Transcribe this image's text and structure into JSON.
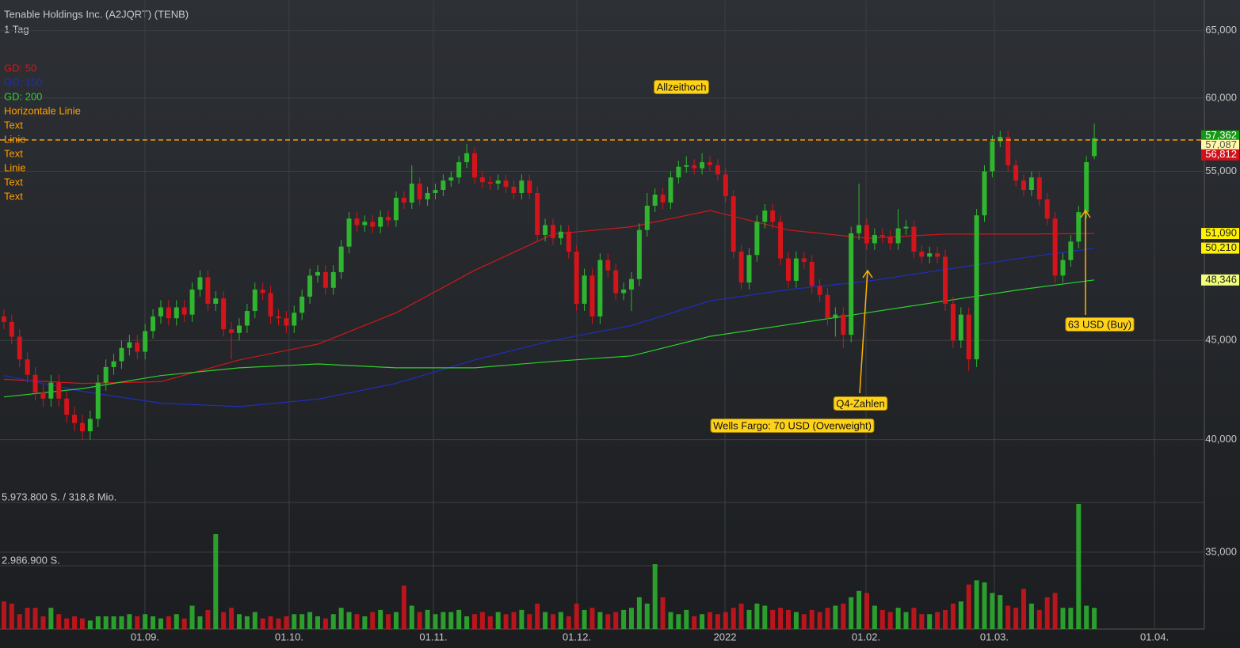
{
  "chart_data": {
    "type": "candlestick",
    "title": "Tenable Holdings Inc. (A2JQRT) (TENB)",
    "subtitle": "1 Tag",
    "log_scale": true,
    "grid": true,
    "ylim": [
      31.95,
      67.4
    ],
    "yticks": [
      {
        "value": 35,
        "label": "35,000"
      },
      {
        "value": 40,
        "label": "40,000"
      },
      {
        "value": 45,
        "label": "45,000"
      },
      {
        "value": 55,
        "label": "55,000"
      },
      {
        "value": 60,
        "label": "60,000"
      },
      {
        "value": 65,
        "label": "65,000"
      }
    ],
    "xlim": [
      -0.5,
      153.03
    ],
    "xticks": [
      {
        "value": 17.98,
        "label": "01.09."
      },
      {
        "value": 36.36,
        "label": "01.10."
      },
      {
        "value": 54.75,
        "label": "01.11."
      },
      {
        "value": 73.03,
        "label": "01.12."
      },
      {
        "value": 91.92,
        "label": "2022"
      },
      {
        "value": 109.9,
        "label": "01.02."
      },
      {
        "value": 126.26,
        "label": "01.03."
      },
      {
        "value": 146.67,
        "label": "01.04."
      }
    ],
    "up_color": "#2fb52f",
    "down_color": "#d3151b",
    "ohlc": [
      [
        46.3,
        46.7,
        45.6,
        46.0
      ],
      [
        46.0,
        46.4,
        44.8,
        45.2
      ],
      [
        45.2,
        45.6,
        43.6,
        44.0
      ],
      [
        44.0,
        44.4,
        42.8,
        43.2
      ],
      [
        43.2,
        43.6,
        41.9,
        42.3
      ],
      [
        42.3,
        42.7,
        41.6,
        42.0
      ],
      [
        42.0,
        43.2,
        41.6,
        42.8
      ],
      [
        42.8,
        43.2,
        41.6,
        42.0
      ],
      [
        42.0,
        42.4,
        40.8,
        41.2
      ],
      [
        41.2,
        41.6,
        40.4,
        40.8
      ],
      [
        40.8,
        41.2,
        40.0,
        40.4
      ],
      [
        40.4,
        41.4,
        40.0,
        41.0
      ],
      [
        41.0,
        43.2,
        40.6,
        42.8
      ],
      [
        42.8,
        44.0,
        42.4,
        43.6
      ],
      [
        43.6,
        44.3,
        43.2,
        43.9
      ],
      [
        43.9,
        45.0,
        43.5,
        44.6
      ],
      [
        44.6,
        45.3,
        44.2,
        44.9
      ],
      [
        44.9,
        45.3,
        44.0,
        44.4
      ],
      [
        44.4,
        45.9,
        44.0,
        45.5
      ],
      [
        45.5,
        46.7,
        45.1,
        46.3
      ],
      [
        46.3,
        47.2,
        45.9,
        46.8
      ],
      [
        46.8,
        47.2,
        45.8,
        46.2
      ],
      [
        46.2,
        47.2,
        45.8,
        46.8
      ],
      [
        46.8,
        47.2,
        46.0,
        46.4
      ],
      [
        46.4,
        48.2,
        46.0,
        47.8
      ],
      [
        47.8,
        48.9,
        47.4,
        48.5
      ],
      [
        48.5,
        48.9,
        46.6,
        47.0
      ],
      [
        47.0,
        47.7,
        46.6,
        47.3
      ],
      [
        47.3,
        47.7,
        45.2,
        45.6
      ],
      [
        45.6,
        46.0,
        44.0,
        45.4
      ],
      [
        45.4,
        46.2,
        45.0,
        45.8
      ],
      [
        45.8,
        47.0,
        45.4,
        46.6
      ],
      [
        46.6,
        48.2,
        46.2,
        47.8
      ],
      [
        47.8,
        48.2,
        47.2,
        47.6
      ],
      [
        47.6,
        48.0,
        45.9,
        46.3
      ],
      [
        46.3,
        46.7,
        45.8,
        46.2
      ],
      [
        46.2,
        46.6,
        45.4,
        45.8
      ],
      [
        45.8,
        46.9,
        45.4,
        46.5
      ],
      [
        46.5,
        47.8,
        46.1,
        47.4
      ],
      [
        47.4,
        49.0,
        47.0,
        48.6
      ],
      [
        48.6,
        49.2,
        48.2,
        48.8
      ],
      [
        48.8,
        49.2,
        47.5,
        47.9
      ],
      [
        47.9,
        49.2,
        47.5,
        48.8
      ],
      [
        48.8,
        50.7,
        48.4,
        50.3
      ],
      [
        50.3,
        52.4,
        49.9,
        52.0
      ],
      [
        52.0,
        52.4,
        51.2,
        51.6
      ],
      [
        51.6,
        52.2,
        51.2,
        51.8
      ],
      [
        51.8,
        52.2,
        51.1,
        51.5
      ],
      [
        51.5,
        52.5,
        51.1,
        52.1
      ],
      [
        52.1,
        52.5,
        51.5,
        51.9
      ],
      [
        51.9,
        53.7,
        51.5,
        53.3
      ],
      [
        53.3,
        53.7,
        52.6,
        53.0
      ],
      [
        53.0,
        55.4,
        52.6,
        54.2
      ],
      [
        54.2,
        54.6,
        52.8,
        53.2
      ],
      [
        53.2,
        54.0,
        52.8,
        53.6
      ],
      [
        53.6,
        54.2,
        53.2,
        53.8
      ],
      [
        53.8,
        54.8,
        53.4,
        54.4
      ],
      [
        54.4,
        55.0,
        54.0,
        54.6
      ],
      [
        54.6,
        56.0,
        54.2,
        55.6
      ],
      [
        55.6,
        56.8,
        55.2,
        56.2
      ],
      [
        56.2,
        56.6,
        54.2,
        54.6
      ],
      [
        54.6,
        55.0,
        53.9,
        54.3
      ],
      [
        54.3,
        54.7,
        53.8,
        54.2
      ],
      [
        54.2,
        54.8,
        53.8,
        54.4
      ],
      [
        54.4,
        54.8,
        53.6,
        54.0
      ],
      [
        54.0,
        54.4,
        53.2,
        53.6
      ],
      [
        53.6,
        54.8,
        53.2,
        54.4
      ],
      [
        54.4,
        54.8,
        53.2,
        53.6
      ],
      [
        53.6,
        54.0,
        50.6,
        51.0
      ],
      [
        51.0,
        52.0,
        50.6,
        51.6
      ],
      [
        51.6,
        52.0,
        50.4,
        50.8
      ],
      [
        50.8,
        51.6,
        50.4,
        51.2
      ],
      [
        51.2,
        51.6,
        49.6,
        50.0
      ],
      [
        50.0,
        50.4,
        46.6,
        47.0
      ],
      [
        47.0,
        49.0,
        46.6,
        48.6
      ],
      [
        48.6,
        49.0,
        45.9,
        46.3
      ],
      [
        46.3,
        49.9,
        45.9,
        49.5
      ],
      [
        49.5,
        49.9,
        48.5,
        48.9
      ],
      [
        48.9,
        49.3,
        47.2,
        47.6
      ],
      [
        47.6,
        48.2,
        47.2,
        47.8
      ],
      [
        47.8,
        48.8,
        46.6,
        48.4
      ],
      [
        48.4,
        51.7,
        48.0,
        51.3
      ],
      [
        51.3,
        53.6,
        50.9,
        52.8
      ],
      [
        52.8,
        53.9,
        52.4,
        53.5
      ],
      [
        53.5,
        53.9,
        52.6,
        53.0
      ],
      [
        53.0,
        55.0,
        52.6,
        54.6
      ],
      [
        54.6,
        55.7,
        54.2,
        55.3
      ],
      [
        55.3,
        56.0,
        54.9,
        55.4
      ],
      [
        55.4,
        55.8,
        54.8,
        55.2
      ],
      [
        55.2,
        56.2,
        54.8,
        55.6
      ],
      [
        55.6,
        56.0,
        55.0,
        55.4
      ],
      [
        55.4,
        55.8,
        54.4,
        54.8
      ],
      [
        54.8,
        55.2,
        53.0,
        53.4
      ],
      [
        53.4,
        53.8,
        49.6,
        50.0
      ],
      [
        50.0,
        50.4,
        47.8,
        48.2
      ],
      [
        48.2,
        50.2,
        47.8,
        49.8
      ],
      [
        49.8,
        52.2,
        49.4,
        51.8
      ],
      [
        51.8,
        52.9,
        51.4,
        52.5
      ],
      [
        52.5,
        52.9,
        51.4,
        51.8
      ],
      [
        51.8,
        52.2,
        49.2,
        49.6
      ],
      [
        49.6,
        50.0,
        47.9,
        48.3
      ],
      [
        48.3,
        50.0,
        47.9,
        49.6
      ],
      [
        49.6,
        50.0,
        49.0,
        49.4
      ],
      [
        49.4,
        49.8,
        47.6,
        48.0
      ],
      [
        48.0,
        48.4,
        47.1,
        47.5
      ],
      [
        47.5,
        47.9,
        45.8,
        46.2
      ],
      [
        46.2,
        46.8,
        45.2,
        46.4
      ],
      [
        46.4,
        46.8,
        44.6,
        45.3
      ],
      [
        45.3,
        51.5,
        44.9,
        51.1
      ],
      [
        51.1,
        54.2,
        50.7,
        51.6
      ],
      [
        51.6,
        52.0,
        50.1,
        50.5
      ],
      [
        50.5,
        51.4,
        50.1,
        51.0
      ],
      [
        51.0,
        51.4,
        50.5,
        50.9
      ],
      [
        50.9,
        51.3,
        50.1,
        50.5
      ],
      [
        50.5,
        52.6,
        50.1,
        51.4
      ],
      [
        51.4,
        51.9,
        51.0,
        51.5
      ],
      [
        51.5,
        51.9,
        49.6,
        50.0
      ],
      [
        50.0,
        50.4,
        49.3,
        49.7
      ],
      [
        49.7,
        50.3,
        49.3,
        49.9
      ],
      [
        49.9,
        50.3,
        49.3,
        49.7
      ],
      [
        49.7,
        50.1,
        46.6,
        47.0
      ],
      [
        47.0,
        47.4,
        44.6,
        45.0
      ],
      [
        45.0,
        46.8,
        44.6,
        46.4
      ],
      [
        46.4,
        46.8,
        43.4,
        44.0
      ],
      [
        44.0,
        52.6,
        43.6,
        52.2
      ],
      [
        52.2,
        55.4,
        51.8,
        55.0
      ],
      [
        55.0,
        57.4,
        54.6,
        57.0
      ],
      [
        57.0,
        57.7,
        56.6,
        57.3
      ],
      [
        57.3,
        57.7,
        55.0,
        55.4
      ],
      [
        55.4,
        55.8,
        54.0,
        54.4
      ],
      [
        54.4,
        54.8,
        53.4,
        53.8
      ],
      [
        53.8,
        55.0,
        53.4,
        54.6
      ],
      [
        54.6,
        55.0,
        52.8,
        53.2
      ],
      [
        53.2,
        53.6,
        51.6,
        52.0
      ],
      [
        52.0,
        52.4,
        48.2,
        48.6
      ],
      [
        48.6,
        49.9,
        48.2,
        49.5
      ],
      [
        49.5,
        51.0,
        49.1,
        50.6
      ],
      [
        50.6,
        52.8,
        50.2,
        52.4
      ],
      [
        52.4,
        56.0,
        52.0,
        55.6
      ],
      [
        56.0,
        58.2,
        55.8,
        57.2
      ]
    ],
    "volume": [
      1300000,
      1200000,
      700000,
      1000000,
      1000000,
      600000,
      1000000,
      700000,
      500000,
      600000,
      500000,
      400000,
      600000,
      600000,
      600000,
      600000,
      700000,
      600000,
      700000,
      600000,
      500000,
      600000,
      700000,
      500000,
      1100000,
      600000,
      900000,
      4480000,
      800000,
      1000000,
      700000,
      600000,
      800000,
      500000,
      600000,
      500000,
      600000,
      700000,
      700000,
      800000,
      600000,
      500000,
      700000,
      1000000,
      800000,
      700000,
      600000,
      800000,
      900000,
      700000,
      800000,
      2050000,
      1100000,
      800000,
      900000,
      700000,
      800000,
      800000,
      900000,
      600000,
      700000,
      800000,
      600000,
      800000,
      700000,
      800000,
      900000,
      700000,
      1200000,
      800000,
      700000,
      800000,
      600000,
      1200000,
      900000,
      1000000,
      800000,
      700000,
      800000,
      900000,
      1000000,
      1500000,
      1200000,
      3060000,
      1500000,
      800000,
      700000,
      900000,
      600000,
      700000,
      800000,
      700000,
      800000,
      1000000,
      1200000,
      900000,
      1200000,
      1100000,
      900000,
      1000000,
      900000,
      800000,
      700000,
      900000,
      800000,
      1000000,
      1100000,
      1200000,
      1500000,
      1800000,
      1700000,
      1100000,
      900000,
      800000,
      1000000,
      800000,
      1000000,
      700000,
      700000,
      800000,
      900000,
      1200000,
      1300000,
      2100000,
      2300000,
      2200000,
      1700000,
      1600000,
      1100000,
      1000000,
      1900000,
      1200000,
      900000,
      1500000,
      1700000,
      1000000,
      1000000,
      5900000,
      1100000,
      1000000
    ],
    "volume_lim": [
      0,
      5973800
    ],
    "volume_ticks": [
      {
        "value": 5973800,
        "label": "5.973.800 S. / 318,8 Mio."
      },
      {
        "value": 2986900,
        "label": "2.986.900 S."
      }
    ],
    "series": [
      {
        "name": "GD: 50",
        "color": "#d0181c",
        "x": [
          0,
          10,
          20,
          30,
          40,
          50,
          60,
          70,
          80,
          90,
          100,
          110,
          120,
          130,
          139
        ],
        "values": [
          42.97,
          42.76,
          42.85,
          43.97,
          44.8,
          46.5,
          48.9,
          51.05,
          51.5,
          52.5,
          51.3,
          50.8,
          51.05,
          51.05,
          51.09
        ]
      },
      {
        "name": "GD: 150",
        "color": "#1f2fb8",
        "x": [
          0,
          10,
          20,
          30,
          40,
          50,
          60,
          70,
          80,
          90,
          100,
          110,
          120,
          130,
          139
        ],
        "values": [
          43.16,
          42.36,
          41.77,
          41.6,
          41.97,
          42.76,
          43.97,
          45.0,
          45.8,
          47.16,
          47.8,
          48.27,
          48.95,
          49.64,
          50.21
        ]
      },
      {
        "name": "GD: 200",
        "color": "#2ed12e",
        "x": [
          0,
          10,
          20,
          30,
          40,
          50,
          60,
          70,
          80,
          90,
          100,
          110,
          120,
          130,
          139
        ],
        "values": [
          42.08,
          42.5,
          43.16,
          43.56,
          43.76,
          43.56,
          43.56,
          43.89,
          44.18,
          45.22,
          45.85,
          46.5,
          47.16,
          47.82,
          48.35
        ]
      }
    ],
    "tools": [
      "Horizontale Linie",
      "Text",
      "Linie",
      "Text",
      "Linie",
      "Text",
      "Text"
    ],
    "tools_color": "#ff9d00",
    "hline": {
      "value": 57.087,
      "color": "#ff9d00"
    },
    "price_tags": [
      {
        "value": 57.362,
        "label": "57,362",
        "color": "#129a12",
        "text_color": "#ffffff"
      },
      {
        "value": 57.087,
        "label": "57,087",
        "color": "#fff9a8",
        "text_color": "#555555"
      },
      {
        "value": 56.812,
        "label": "56,812",
        "color": "#d3101a",
        "text_color": "#ffffff"
      },
      {
        "value": 51.09,
        "label": "51,090",
        "color": "#fff200",
        "text_color": "#222222"
      },
      {
        "value": 50.21,
        "label": "50,210",
        "color": "#fff200",
        "text_color": "#222222"
      },
      {
        "value": 48.346,
        "label": "48,346",
        "color": "#f2ff7a",
        "text_color": "#222222"
      }
    ],
    "annotations": [
      "Allzeithoch",
      "Q4-Zahlen",
      "Wells Fargo: 70 USD (Overweight)",
      "63 USD (Buy)"
    ]
  }
}
